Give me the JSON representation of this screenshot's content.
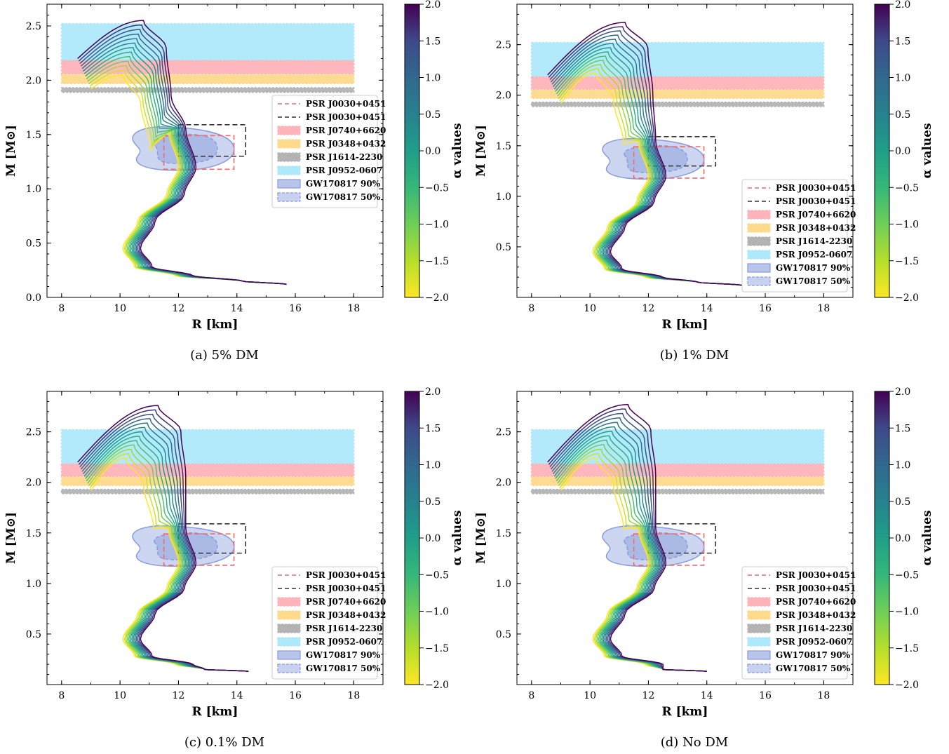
{
  "figure": {
    "panels": [
      {
        "caption": "(a)  5% DM",
        "cb_ticks": [
          "2.0",
          "1.5",
          "1.0",
          "0.5",
          "0.0",
          "−0.5",
          "−1.0",
          "−1.5",
          "−2.0"
        ]
      },
      {
        "caption": "(b)  1% DM",
        "cb_ticks": [
          "2.0",
          "1.5",
          "1.0",
          "0.5",
          "0.0",
          "−0.5",
          "−1.0",
          "−1.5",
          "−2.0"
        ]
      },
      {
        "caption": "(c)  0.1% DM",
        "cb_ticks": [
          "2.0",
          "1.5",
          "1.0",
          "0.5",
          "0.0",
          "−0.5",
          "−1.0",
          "−1.5",
          "−2.0"
        ]
      },
      {
        "caption": "(d)  No DM",
        "cb_ticks": [
          "2.0",
          "1.5",
          "1.0",
          "0.5",
          "0.0",
          "−0.5",
          "−1.0",
          "−1.5",
          "−2.0"
        ]
      }
    ]
  },
  "chart_data": [
    {
      "type": "line",
      "xlabel": "R [km]",
      "ylabel": "M [M⊙]",
      "colorbar_label": "α values",
      "colorbar_range": [
        -2.0,
        2.0
      ],
      "xlim": [
        7.5,
        19.0
      ],
      "ylim": [
        0.0,
        2.7
      ],
      "xticks": [
        "8",
        "10",
        "12",
        "14",
        "16",
        "18"
      ],
      "yticks": [
        "0.0",
        "0.5",
        "1.0",
        "1.5",
        "2.0",
        "2.5"
      ],
      "legend_position": "right",
      "legend": [
        "PSR J0030+0451",
        "PSR J0030+0451",
        "PSR J0740+6620",
        "PSR J0348+0432",
        "PSR J1614-2230",
        "PSR J0952-0607",
        "GW170817 90%",
        "GW170817 50%"
      ],
      "alpha_values": [
        -2.0,
        2.0
      ],
      "curves": {
        "alpha_min": {
          "max_mass": 2.05,
          "r_at_max": 10.1,
          "tail_end": [
            15.7,
            0.12
          ]
        },
        "alpha_max": {
          "max_mass": 2.55,
          "r_at_max": 10.8,
          "tail_end": [
            15.7,
            0.12
          ]
        }
      },
      "bands": {
        "PSR J0952-0607": [
          2.18,
          2.52
        ],
        "PSR J1614-2230": [
          1.89,
          1.93
        ],
        "PSR J0740+6620": [
          2.06,
          2.18
        ],
        "PSR J0348+0432": [
          1.97,
          2.05
        ]
      },
      "boxes": {
        "PSR J0030+0451 (red)": {
          "r": [
            11.5,
            13.9
          ],
          "m": [
            1.18,
            1.49
          ]
        },
        "PSR J0030+0451 (black)": {
          "r": [
            12.0,
            14.3
          ],
          "m": [
            1.3,
            1.59
          ]
        }
      }
    },
    {
      "type": "line",
      "xlabel": "R [km]",
      "ylabel": "M [M⊙]",
      "colorbar_label": "α values",
      "colorbar_range": [
        -2.0,
        2.0
      ],
      "xlim": [
        7.5,
        19.0
      ],
      "ylim": [
        0.0,
        2.9
      ],
      "xticks": [
        "8",
        "10",
        "12",
        "14",
        "16",
        "18"
      ],
      "yticks": [
        "0.5",
        "1.0",
        "1.5",
        "2.0",
        "2.5"
      ],
      "legend_position": "lower right",
      "legend": [
        "PSR J0030+0451",
        "PSR J0030+0451",
        "PSR J0740+6620",
        "PSR J0348+0432",
        "PSR J1614-2230",
        "PSR J0952-0607",
        "GW170817 90%",
        "GW170817 50%"
      ],
      "alpha_values": [
        -2.0,
        2.0
      ],
      "curves": {
        "alpha_min": {
          "max_mass": 2.22,
          "r_at_max": 10.2,
          "tail_end": [
            15.2,
            0.12
          ]
        },
        "alpha_max": {
          "max_mass": 2.72,
          "r_at_max": 11.2,
          "tail_end": [
            15.2,
            0.12
          ]
        }
      },
      "bands": {
        "PSR J0952-0607": [
          2.18,
          2.52
        ],
        "PSR J1614-2230": [
          1.89,
          1.93
        ],
        "PSR J0740+6620": [
          2.06,
          2.18
        ],
        "PSR J0348+0432": [
          1.97,
          2.05
        ]
      },
      "boxes": {
        "PSR J0030+0451 (red)": {
          "r": [
            11.5,
            13.9
          ],
          "m": [
            1.18,
            1.49
          ]
        },
        "PSR J0030+0451 (black)": {
          "r": [
            12.0,
            14.3
          ],
          "m": [
            1.3,
            1.59
          ]
        }
      }
    },
    {
      "type": "line",
      "xlabel": "R [km]",
      "ylabel": "M [M⊙]",
      "colorbar_label": "α values",
      "colorbar_range": [
        -2.0,
        2.0
      ],
      "xlim": [
        7.5,
        19.0
      ],
      "ylim": [
        0.0,
        2.9
      ],
      "xticks": [
        "8",
        "10",
        "12",
        "14",
        "16",
        "18"
      ],
      "yticks": [
        "0.5",
        "1.0",
        "1.5",
        "2.0",
        "2.5"
      ],
      "legend_position": "lower right",
      "legend": [
        "PSR J0030+0451",
        "PSR J0030+0451",
        "PSR J0740+6620",
        "PSR J0348+0432",
        "PSR J1614-2230",
        "PSR J0952-0607",
        "GW170817 90%",
        "GW170817 50%"
      ],
      "alpha_values": [
        -2.0,
        2.0
      ],
      "curves": {
        "alpha_min": {
          "max_mass": 2.24,
          "r_at_max": 10.2,
          "tail_end": [
            14.4,
            0.13
          ]
        },
        "alpha_max": {
          "max_mass": 2.76,
          "r_at_max": 11.3,
          "tail_end": [
            14.4,
            0.13
          ]
        }
      },
      "bands": {
        "PSR J0952-0607": [
          2.18,
          2.52
        ],
        "PSR J1614-2230": [
          1.89,
          1.93
        ],
        "PSR J0740+6620": [
          2.06,
          2.18
        ],
        "PSR J0348+0432": [
          1.97,
          2.05
        ]
      },
      "boxes": {
        "PSR J0030+0451 (red)": {
          "r": [
            11.5,
            13.9
          ],
          "m": [
            1.18,
            1.49
          ]
        },
        "PSR J0030+0451 (black)": {
          "r": [
            12.0,
            14.3
          ],
          "m": [
            1.3,
            1.59
          ]
        }
      }
    },
    {
      "type": "line",
      "xlabel": "R [km]",
      "ylabel": "M [M⊙]",
      "colorbar_label": "α values",
      "colorbar_range": [
        -2.0,
        2.0
      ],
      "xlim": [
        7.5,
        19.0
      ],
      "ylim": [
        0.0,
        2.9
      ],
      "xticks": [
        "8",
        "10",
        "12",
        "14",
        "16",
        "18"
      ],
      "yticks": [
        "0.5",
        "1.0",
        "1.5",
        "2.0",
        "2.5"
      ],
      "legend_position": "lower right",
      "legend": [
        "PSR J0030+0451",
        "PSR J0030+0451",
        "PSR J0740+6620",
        "PSR J0348+0432",
        "PSR J1614-2230",
        "PSR J0952-0607",
        "GW170817 90%",
        "GW170817 50%"
      ],
      "alpha_values": [
        -2.0,
        2.0
      ],
      "curves": {
        "alpha_min": {
          "max_mass": 2.24,
          "r_at_max": 10.2,
          "tail_end": [
            14.0,
            0.13
          ]
        },
        "alpha_max": {
          "max_mass": 2.77,
          "r_at_max": 11.3,
          "tail_end": [
            14.0,
            0.13
          ]
        }
      },
      "bands": {
        "PSR J0952-0607": [
          2.18,
          2.52
        ],
        "PSR J1614-2230": [
          1.89,
          1.93
        ],
        "PSR J0740+6620": [
          2.06,
          2.18
        ],
        "PSR J0348+0432": [
          1.97,
          2.05
        ]
      },
      "boxes": {
        "PSR J0030+0451 (red)": {
          "r": [
            11.5,
            13.9
          ],
          "m": [
            1.18,
            1.49
          ]
        },
        "PSR J0030+0451 (black)": {
          "r": [
            12.0,
            14.3
          ],
          "m": [
            1.3,
            1.59
          ]
        }
      }
    }
  ],
  "colors": {
    "band_J0952": "#aee8fb",
    "band_J1614": "#b3b3b3",
    "band_J0740": "#ffb3ba",
    "band_J0348": "#ffd98c",
    "box_red": "#f06a6a",
    "box_black": "#333333",
    "gw_fill": "#b8c4ea",
    "gw_edge": "#8a9ae0"
  }
}
